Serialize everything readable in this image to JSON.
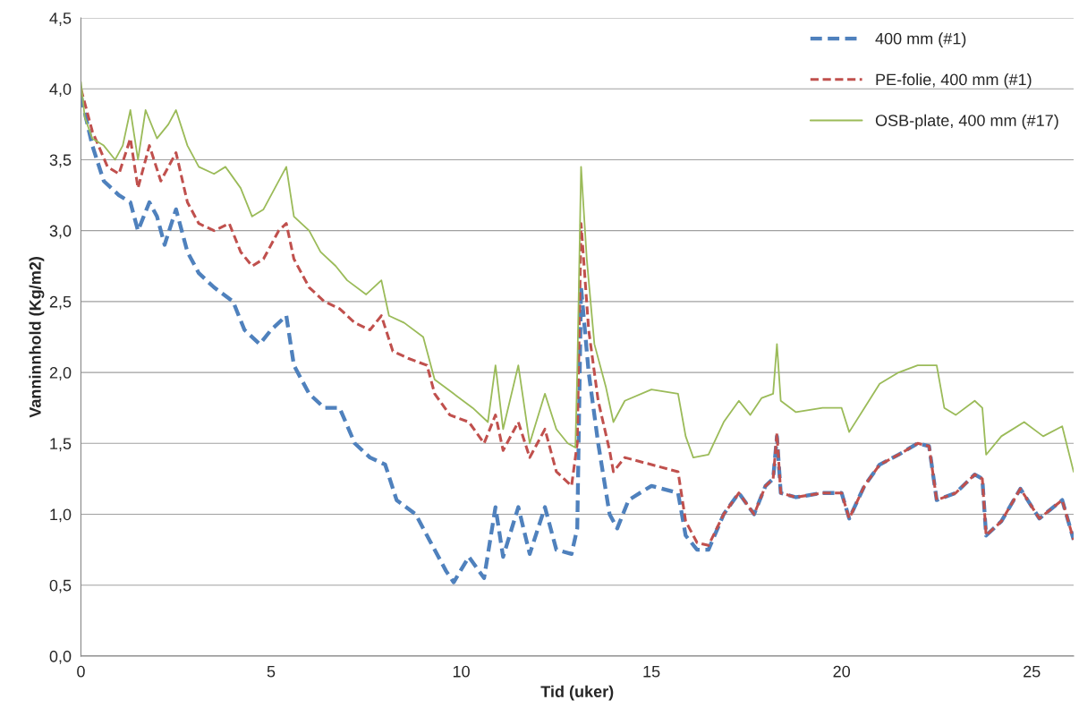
{
  "chart_data": {
    "type": "line",
    "xlabel": "Tid (uker)",
    "ylabel": "Vanninnhold (Kg/m2)",
    "xlim": [
      0,
      26.1
    ],
    "xticks": [
      0,
      5,
      10,
      15,
      20,
      25
    ],
    "ylim": [
      0,
      4.5
    ],
    "yticks": [
      {
        "value": 0,
        "label": "0,0"
      },
      {
        "value": 0.5,
        "label": "0,5"
      },
      {
        "value": 1,
        "label": "1,0"
      },
      {
        "value": 1.5,
        "label": "1,5"
      },
      {
        "value": 2,
        "label": "2,0"
      },
      {
        "value": 2.5,
        "label": "2,5"
      },
      {
        "value": 3,
        "label": "3,0"
      },
      {
        "value": 3.5,
        "label": "3,5"
      },
      {
        "value": 4,
        "label": "4,0"
      },
      {
        "value": 4.5,
        "label": "4,5"
      }
    ],
    "grid": "y",
    "legend": "top right",
    "marker": "none",
    "series": [
      {
        "name": "400 mm (#1)",
        "color": "#4f81bd",
        "line_style": "dashed",
        "x": [
          0,
          0.3,
          0.6,
          1.0,
          1.3,
          1.5,
          1.8,
          2.0,
          2.2,
          2.5,
          2.8,
          3.1,
          3.5,
          4.0,
          4.3,
          4.7,
          5.0,
          5.4,
          5.6,
          6.0,
          6.4,
          6.8,
          7.2,
          7.6,
          8.0,
          8.3,
          8.8,
          9.2,
          9.6,
          9.8,
          10.2,
          10.6,
          10.9,
          11.1,
          11.5,
          11.8,
          12.2,
          12.5,
          12.9,
          13.05,
          13.15,
          13.35,
          13.6,
          13.9,
          14.1,
          14.4,
          15.0,
          15.7,
          15.9,
          16.2,
          16.5,
          16.9,
          17.3,
          17.7,
          18.0,
          18.2,
          18.3,
          18.4,
          18.8,
          19.5,
          20.0,
          20.2,
          20.6,
          21.0,
          21.5,
          22.0,
          22.3,
          22.5,
          23.0,
          23.5,
          23.7,
          23.8,
          24.2,
          24.7,
          25.2,
          25.8,
          26.1
        ],
        "values": [
          3.95,
          3.6,
          3.35,
          3.25,
          3.2,
          3.0,
          3.2,
          3.1,
          2.9,
          3.15,
          2.85,
          2.7,
          2.6,
          2.5,
          2.3,
          2.2,
          2.3,
          2.4,
          2.05,
          1.85,
          1.75,
          1.75,
          1.5,
          1.4,
          1.35,
          1.1,
          1.0,
          0.8,
          0.6,
          0.52,
          0.7,
          0.55,
          1.05,
          0.7,
          1.05,
          0.72,
          1.05,
          0.75,
          0.72,
          0.9,
          2.6,
          2.0,
          1.5,
          1.0,
          0.9,
          1.1,
          1.2,
          1.15,
          0.85,
          0.75,
          0.75,
          1.0,
          1.15,
          1.0,
          1.2,
          1.25,
          1.55,
          1.15,
          1.12,
          1.15,
          1.15,
          0.97,
          1.2,
          1.35,
          1.42,
          1.5,
          1.48,
          1.1,
          1.15,
          1.28,
          1.25,
          0.85,
          0.95,
          1.18,
          0.97,
          1.1,
          0.82
        ]
      },
      {
        "name": "PE-folie, 400 mm (#1)",
        "color": "#c0504d",
        "line_style": "dashed",
        "x": [
          0,
          0.3,
          0.7,
          1.0,
          1.3,
          1.5,
          1.8,
          2.1,
          2.5,
          2.8,
          3.1,
          3.5,
          3.9,
          4.2,
          4.5,
          4.8,
          5.2,
          5.4,
          5.6,
          6.0,
          6.4,
          6.8,
          7.2,
          7.6,
          7.9,
          8.2,
          8.6,
          9.1,
          9.3,
          9.7,
          10.2,
          10.6,
          10.9,
          11.1,
          11.5,
          11.8,
          12.2,
          12.5,
          12.9,
          13.05,
          13.15,
          13.35,
          13.6,
          13.9,
          14.0,
          14.3,
          15.0,
          15.7,
          15.9,
          16.2,
          16.5,
          16.9,
          17.3,
          17.7,
          18.0,
          18.2,
          18.3,
          18.4,
          18.8,
          19.5,
          20.0,
          20.2,
          20.6,
          21.0,
          21.5,
          22.0,
          22.3,
          22.5,
          23.0,
          23.5,
          23.7,
          23.8,
          24.2,
          24.7,
          25.2,
          25.8,
          26.1
        ],
        "values": [
          4.0,
          3.7,
          3.45,
          3.4,
          3.65,
          3.3,
          3.6,
          3.35,
          3.55,
          3.2,
          3.05,
          3.0,
          3.05,
          2.85,
          2.75,
          2.8,
          3.0,
          3.05,
          2.8,
          2.6,
          2.5,
          2.45,
          2.35,
          2.3,
          2.4,
          2.15,
          2.1,
          2.05,
          1.85,
          1.7,
          1.65,
          1.5,
          1.7,
          1.45,
          1.65,
          1.4,
          1.6,
          1.3,
          1.2,
          1.5,
          3.05,
          2.3,
          1.8,
          1.45,
          1.3,
          1.4,
          1.35,
          1.3,
          0.95,
          0.8,
          0.78,
          1.0,
          1.15,
          1.0,
          1.2,
          1.25,
          1.57,
          1.15,
          1.12,
          1.15,
          1.15,
          0.97,
          1.2,
          1.35,
          1.42,
          1.5,
          1.48,
          1.1,
          1.15,
          1.28,
          1.25,
          0.85,
          0.95,
          1.18,
          0.97,
          1.1,
          0.82
        ]
      },
      {
        "name": "OSB-plate, 400 mm (#17)",
        "color": "#9bbb59",
        "line_style": "solid",
        "x": [
          0,
          0.1,
          0.3,
          0.6,
          0.9,
          1.1,
          1.3,
          1.5,
          1.7,
          2.0,
          2.3,
          2.5,
          2.8,
          3.1,
          3.5,
          3.8,
          4.2,
          4.5,
          4.8,
          5.1,
          5.4,
          5.6,
          6.0,
          6.3,
          6.7,
          7.0,
          7.5,
          7.9,
          8.1,
          8.5,
          9.0,
          9.3,
          9.8,
          10.3,
          10.7,
          10.9,
          11.1,
          11.5,
          11.8,
          12.2,
          12.5,
          12.8,
          13.0,
          13.05,
          13.15,
          13.3,
          13.5,
          13.8,
          14.0,
          14.3,
          15.0,
          15.7,
          15.9,
          16.1,
          16.5,
          16.9,
          17.3,
          17.6,
          17.9,
          18.2,
          18.3,
          18.4,
          18.8,
          19.5,
          20.0,
          20.2,
          20.6,
          21.0,
          21.5,
          22.0,
          22.5,
          22.7,
          23.0,
          23.5,
          23.7,
          23.8,
          24.2,
          24.8,
          25.3,
          25.8,
          26.1
        ],
        "values": [
          4.05,
          3.8,
          3.65,
          3.6,
          3.5,
          3.6,
          3.85,
          3.5,
          3.85,
          3.65,
          3.75,
          3.85,
          3.6,
          3.45,
          3.4,
          3.45,
          3.3,
          3.1,
          3.15,
          3.3,
          3.45,
          3.1,
          3.0,
          2.85,
          2.75,
          2.65,
          2.55,
          2.65,
          2.4,
          2.35,
          2.25,
          1.95,
          1.85,
          1.75,
          1.65,
          2.05,
          1.6,
          2.05,
          1.5,
          1.85,
          1.6,
          1.5,
          1.47,
          2.0,
          3.45,
          2.8,
          2.2,
          1.9,
          1.65,
          1.8,
          1.88,
          1.85,
          1.55,
          1.4,
          1.42,
          1.65,
          1.8,
          1.7,
          1.82,
          1.85,
          2.2,
          1.8,
          1.72,
          1.75,
          1.75,
          1.58,
          1.75,
          1.92,
          2.0,
          2.05,
          2.05,
          1.75,
          1.7,
          1.8,
          1.75,
          1.42,
          1.55,
          1.65,
          1.55,
          1.62,
          1.3
        ]
      }
    ]
  }
}
